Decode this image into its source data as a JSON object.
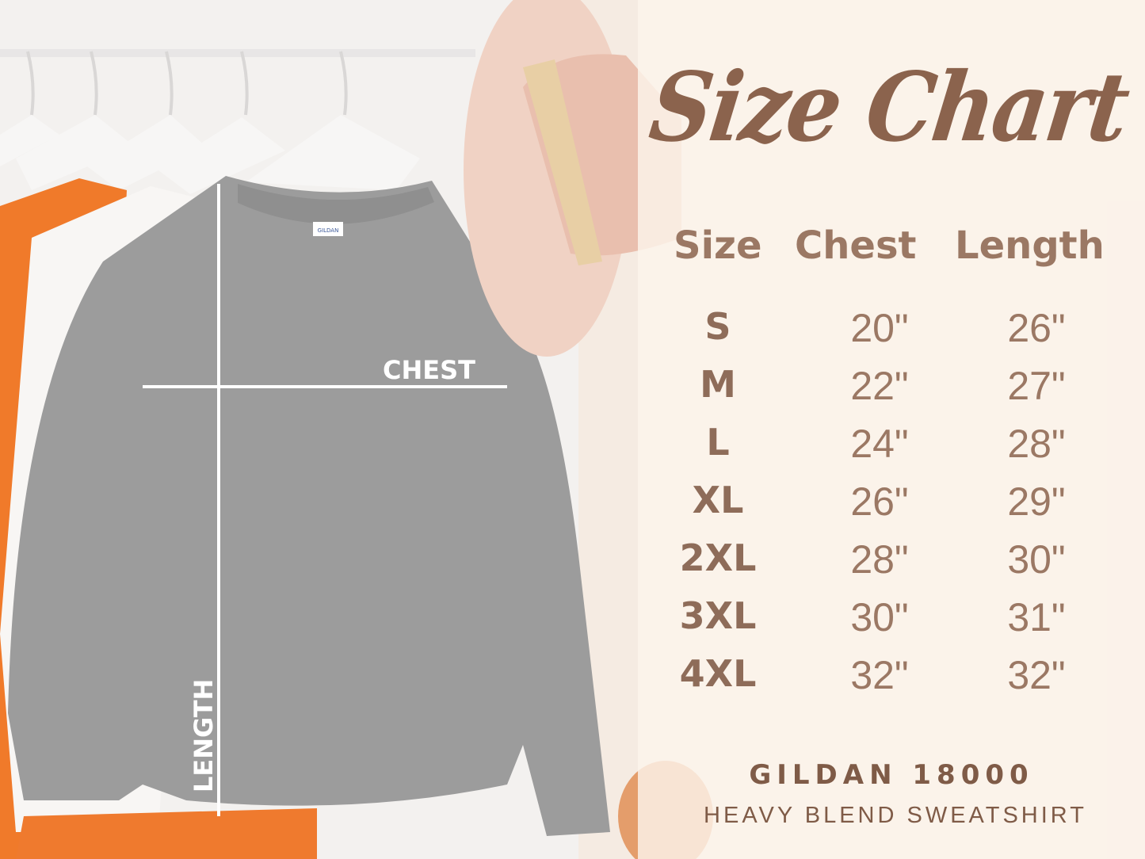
{
  "title": "Size Chart",
  "table": {
    "headers": [
      "Size",
      "Chest",
      "Length"
    ],
    "rows": [
      {
        "size": "S",
        "chest": "20\"",
        "length": "26\""
      },
      {
        "size": "M",
        "chest": "22\"",
        "length": "27\""
      },
      {
        "size": "L",
        "chest": "24\"",
        "length": "28\""
      },
      {
        "size": "XL",
        "chest": "26\"",
        "length": "29\""
      },
      {
        "size": "2XL",
        "chest": "28\"",
        "length": "30\""
      },
      {
        "size": "3XL",
        "chest": "30\"",
        "length": "31\""
      },
      {
        "size": "4XL",
        "chest": "32\"",
        "length": "32\""
      }
    ]
  },
  "product": {
    "brand_model": "GILDAN 18000",
    "description": "HEAVY BLEND SWEATSHIRT"
  },
  "photo": {
    "chest_label": "CHEST",
    "length_label": "LENGTH",
    "tag_text": "GILDAN"
  },
  "colors": {
    "text_brown": "#8b634d",
    "sweatshirt_gray": "#9a9a9a",
    "orange": "#f07a2a",
    "hat_pink": "#f0d2c4"
  }
}
